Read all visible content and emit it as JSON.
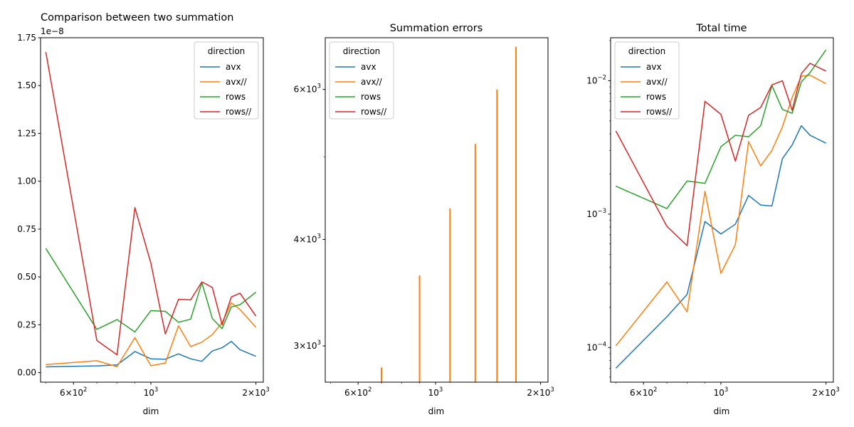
{
  "chart_data": [
    {
      "type": "line",
      "title": "Comparison between two summation",
      "xlabel": "dim",
      "ylabel": "",
      "xscale": "log",
      "yscale": "linear",
      "y_multiplier_label": "1e−8",
      "xlim": [
        483,
        2100
      ],
      "ylim": [
        -0.05,
        1.75
      ],
      "xticks": [
        {
          "value": 600,
          "base": "6",
          "exp": "2"
        },
        {
          "value": 1000,
          "base": "",
          "exp": "3"
        },
        {
          "value": 2000,
          "base": "2",
          "exp": "3"
        }
      ],
      "xminor": [
        400,
        500,
        700,
        800,
        900,
        3000
      ],
      "yticks": [
        {
          "value": 0,
          "label": "0.00"
        },
        {
          "value": 0.25,
          "label": "0.25"
        },
        {
          "value": 0.5,
          "label": "0.50"
        },
        {
          "value": 0.75,
          "label": "0.75"
        },
        {
          "value": 1.0,
          "label": "1.00"
        },
        {
          "value": 1.25,
          "label": "1.25"
        },
        {
          "value": 1.5,
          "label": "1.50"
        },
        {
          "value": 1.75,
          "label": "1.75"
        }
      ],
      "legend": {
        "title": "direction",
        "position": "upper right"
      },
      "series": [
        {
          "name": "avx",
          "color": "#1f77b4",
          "x": [
            500,
            700,
            800,
            900,
            1000,
            1100,
            1200,
            1300,
            1400,
            1500,
            1600,
            1700,
            1800,
            2000
          ],
          "y": [
            0.03,
            0.035,
            0.04,
            0.11,
            0.072,
            0.07,
            0.098,
            0.072,
            0.059,
            0.113,
            0.13,
            0.163,
            0.12,
            0.085
          ]
        },
        {
          "name": "avx//",
          "color": "#ff7f0e",
          "x": [
            500,
            700,
            800,
            900,
            1000,
            1100,
            1200,
            1300,
            1400,
            1500,
            1600,
            1700,
            1800,
            2000
          ],
          "y": [
            0.042,
            0.062,
            0.031,
            0.183,
            0.036,
            0.05,
            0.245,
            0.136,
            0.159,
            0.199,
            0.261,
            0.365,
            0.33,
            0.237
          ]
        },
        {
          "name": "rows",
          "color": "#2ca02c",
          "x": [
            500,
            700,
            800,
            900,
            1000,
            1100,
            1200,
            1300,
            1400,
            1500,
            1600,
            1700,
            1800,
            2000
          ],
          "y": [
            0.649,
            0.226,
            0.277,
            0.212,
            0.324,
            0.32,
            0.263,
            0.279,
            0.47,
            0.283,
            0.23,
            0.343,
            0.355,
            0.42
          ]
        },
        {
          "name": "rows//",
          "color": "#d62728",
          "x": [
            500,
            700,
            800,
            900,
            1000,
            1100,
            1200,
            1300,
            1400,
            1500,
            1600,
            1700,
            1800,
            2000
          ],
          "y": [
            1.675,
            0.168,
            0.093,
            0.862,
            0.572,
            0.202,
            0.383,
            0.38,
            0.474,
            0.445,
            0.25,
            0.395,
            0.415,
            0.295
          ]
        }
      ]
    },
    {
      "type": "line",
      "title": "Summation errors",
      "xlabel": "dim",
      "ylabel": "",
      "xscale": "log",
      "yscale": "log",
      "xlim": [
        483,
        2100
      ],
      "ylim": [
        2720,
        6900
      ],
      "xticks": [
        {
          "value": 600,
          "base": "6",
          "exp": "2"
        },
        {
          "value": 1000,
          "base": "",
          "exp": "3"
        },
        {
          "value": 2000,
          "base": "2",
          "exp": "3"
        }
      ],
      "xminor": [
        400,
        500,
        700,
        800,
        900,
        3000
      ],
      "yticks": [
        {
          "value": 3000,
          "base": "3",
          "exp": "3"
        },
        {
          "value": 4000,
          "base": "4",
          "exp": "3"
        },
        {
          "value": 6000,
          "base": "6",
          "exp": "3"
        }
      ],
      "yminor": [
        5000
      ],
      "legend": {
        "title": "direction",
        "position": "upper left"
      },
      "series": [
        {
          "name": "avx",
          "color": "#1f77b4",
          "segments": []
        },
        {
          "name": "avx//",
          "color": "#ff7f0e",
          "segments": [
            {
              "x": 700,
              "y": [
                2600,
                2830
              ]
            },
            {
              "x": 900,
              "y": [
                2600,
                3630
              ]
            },
            {
              "x": 1100,
              "y": [
                2600,
                4350
              ]
            },
            {
              "x": 1300,
              "y": [
                2600,
                5180
              ]
            },
            {
              "x": 1500,
              "y": [
                2600,
                6000
              ]
            },
            {
              "x": 1700,
              "y": [
                2600,
                6730
              ]
            }
          ]
        },
        {
          "name": "rows",
          "color": "#2ca02c",
          "segments": []
        },
        {
          "name": "rows//",
          "color": "#d62728",
          "segments": []
        }
      ]
    },
    {
      "type": "line",
      "title": "Total time",
      "xlabel": "dim",
      "ylabel": "",
      "xscale": "log",
      "yscale": "log",
      "xlim": [
        483,
        2100
      ],
      "ylim": [
        5.5e-05,
        0.021
      ],
      "xticks": [
        {
          "value": 600,
          "base": "6",
          "exp": "2"
        },
        {
          "value": 1000,
          "base": "",
          "exp": "3"
        },
        {
          "value": 2000,
          "base": "2",
          "exp": "3"
        }
      ],
      "xminor": [
        400,
        500,
        700,
        800,
        900,
        3000
      ],
      "yticks": [
        {
          "value": 0.0001,
          "base": "",
          "exp": "−4"
        },
        {
          "value": 0.001,
          "base": "",
          "exp": "−3"
        },
        {
          "value": 0.01,
          "base": "",
          "exp": "−2"
        }
      ],
      "yminor": [
        6e-05,
        7e-05,
        8e-05,
        9e-05,
        0.0002,
        0.0003,
        0.0004,
        0.0005,
        0.0006,
        0.0007,
        0.0008,
        0.0009,
        0.002,
        0.003,
        0.004,
        0.005,
        0.006,
        0.007,
        0.008,
        0.009,
        0.02
      ],
      "legend": {
        "title": "direction",
        "position": "upper left"
      },
      "series": [
        {
          "name": "avx",
          "color": "#1f77b4",
          "x": [
            500,
            700,
            800,
            900,
            1000,
            1100,
            1200,
            1300,
            1400,
            1500,
            1600,
            1700,
            1800,
            2000
          ],
          "y": [
            7e-05,
            0.00017,
            0.00025,
            0.00088,
            0.00071,
            0.00084,
            0.00138,
            0.00117,
            0.00115,
            0.0026,
            0.0033,
            0.0046,
            0.0039,
            0.0034
          ]
        },
        {
          "name": "avx//",
          "color": "#ff7f0e",
          "x": [
            500,
            700,
            800,
            900,
            1000,
            1100,
            1200,
            1300,
            1400,
            1500,
            1600,
            1700,
            1800,
            2000
          ],
          "y": [
            0.000103,
            0.00031,
            0.000185,
            0.00148,
            0.00036,
            0.00059,
            0.0035,
            0.0023,
            0.003,
            0.0045,
            0.0075,
            0.0108,
            0.011,
            0.0095
          ]
        },
        {
          "name": "rows",
          "color": "#2ca02c",
          "x": [
            500,
            700,
            800,
            900,
            1000,
            1100,
            1200,
            1300,
            1400,
            1500,
            1600,
            1700,
            1800,
            2000
          ],
          "y": [
            0.00162,
            0.0011,
            0.00177,
            0.0017,
            0.0032,
            0.0039,
            0.0038,
            0.0046,
            0.0092,
            0.0061,
            0.0057,
            0.0098,
            0.0115,
            0.017
          ]
        },
        {
          "name": "rows//",
          "color": "#d62728",
          "x": [
            500,
            700,
            800,
            900,
            1000,
            1100,
            1200,
            1300,
            1400,
            1500,
            1600,
            1700,
            1800,
            2000
          ],
          "y": [
            0.0042,
            0.00081,
            0.00058,
            0.007,
            0.0056,
            0.0025,
            0.0055,
            0.0063,
            0.0093,
            0.01,
            0.006,
            0.0113,
            0.0135,
            0.0118
          ]
        }
      ]
    }
  ]
}
